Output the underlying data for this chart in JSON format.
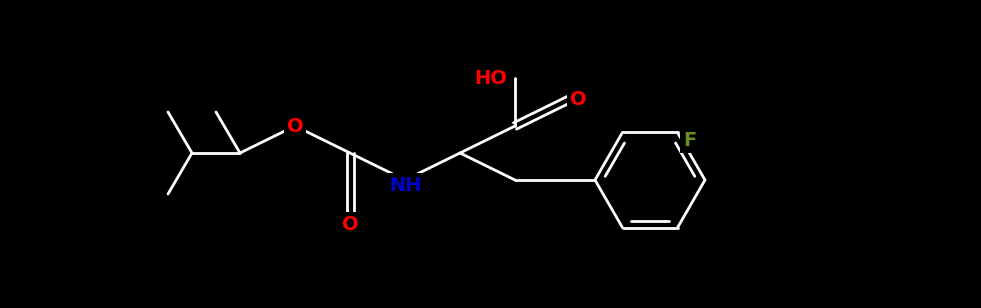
{
  "bg_color": "#000000",
  "atom_colors": {
    "O": "#ff0000",
    "N": "#0000cd",
    "F": "#6b8e23",
    "H": "#ffffff"
  },
  "figsize": [
    9.81,
    3.08
  ],
  "dpi": 100,
  "bond_lw": 2.0,
  "font_size": 13,
  "ring_font_size": 13
}
